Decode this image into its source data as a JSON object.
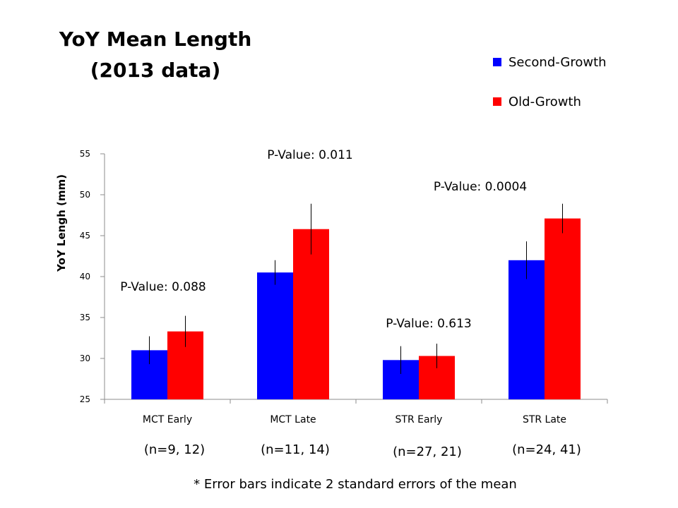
{
  "chart_data": {
    "type": "bar",
    "title": [
      "YoY Mean Length",
      "(2013 data)"
    ],
    "xlabel": "",
    "ylabel": "YoY Lengh (mm)",
    "ylim": [
      25,
      55
    ],
    "yticks": [
      25,
      30,
      35,
      40,
      45,
      50,
      55
    ],
    "grid": false,
    "legend_position": "top-right",
    "categories": [
      "MCT Early",
      "MCT Late",
      "STR Early",
      "STR Late"
    ],
    "sample_sizes": [
      "(n=9, 12)",
      "(n=11, 14)",
      "(n=27, 21)",
      "(n=24, 41)"
    ],
    "series": [
      {
        "name": "Second-Growth",
        "color": "#0000ff",
        "values": [
          31.0,
          40.5,
          29.8,
          42.0
        ],
        "error": [
          1.7,
          1.5,
          1.7,
          2.3
        ]
      },
      {
        "name": "Old-Growth",
        "color": "#ff0000",
        "values": [
          33.3,
          45.8,
          30.3,
          47.1
        ],
        "error": [
          1.9,
          3.1,
          1.5,
          1.8
        ]
      }
    ],
    "annotations": [
      "P-Value: 0.088",
      "P-Value: 0.011",
      "P-Value: 0.613",
      "P-Value: 0.0004"
    ],
    "footnote": "* Error bars indicate 2 standard errors of the mean"
  }
}
